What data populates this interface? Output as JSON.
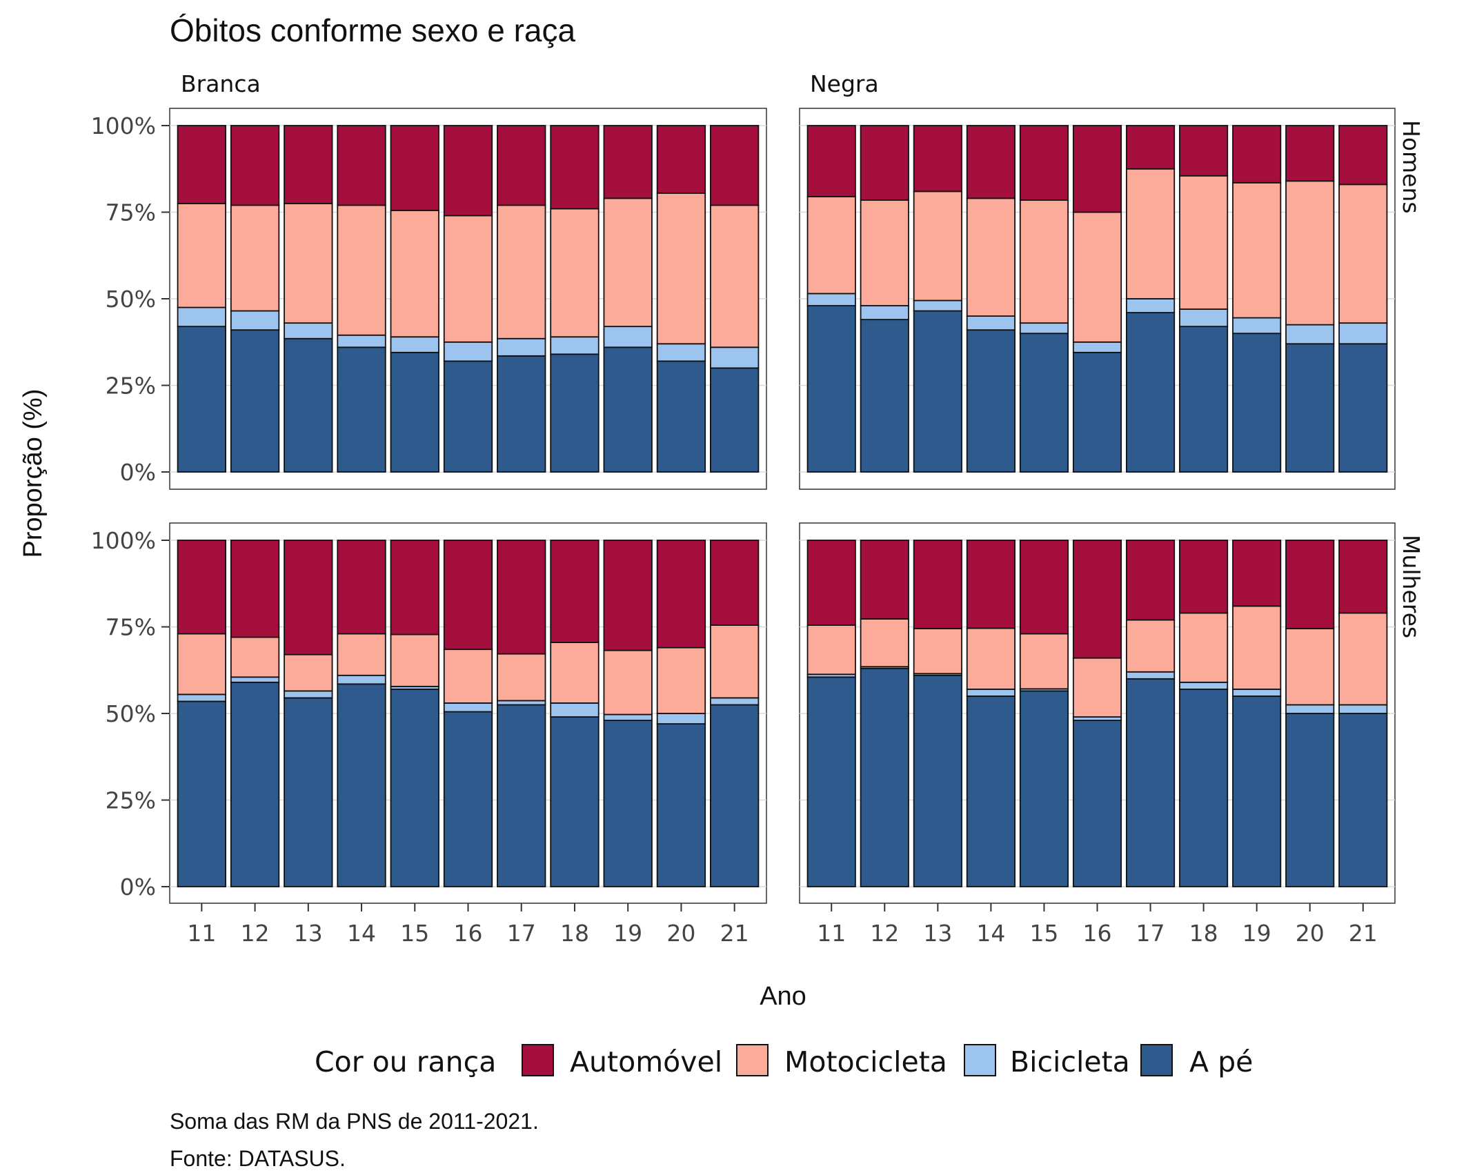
{
  "chart_data": {
    "type": "bar",
    "stacked": true,
    "percent": true,
    "title": "Óbitos conforme sexo e raça",
    "xlabel": "Ano",
    "ylabel": "Proporção (%)",
    "ylim": [
      0,
      100
    ],
    "yticks": [
      "0%",
      "25%",
      "50%",
      "75%",
      "100%"
    ],
    "categories": [
      "11",
      "12",
      "13",
      "14",
      "15",
      "16",
      "17",
      "18",
      "19",
      "20",
      "21"
    ],
    "legend": {
      "title": "Cor ou rança",
      "position": "bottom",
      "entries": [
        "Automóvel",
        "Motocicleta",
        "Bicicleta",
        "A pé"
      ]
    },
    "colors": {
      "Automóvel": "#a50f3d",
      "Motocicleta": "#fcab9a",
      "Bicicleta": "#9dc4ee",
      "A pé": "#2e5a8e"
    },
    "column_labels": [
      "Branca",
      "Negra"
    ],
    "row_labels": [
      "Homens",
      "Mulheres"
    ],
    "panels": [
      {
        "row": "Homens",
        "col": "Branca",
        "series": [
          {
            "name": "A pé",
            "values": [
              42,
              41,
              38.5,
              36,
              34.5,
              32,
              33.5,
              34,
              36,
              32,
              30
            ]
          },
          {
            "name": "Bicicleta",
            "values": [
              5.5,
              5.5,
              4.5,
              3.5,
              4.5,
              5.5,
              5,
              5,
              6,
              5,
              6
            ]
          },
          {
            "name": "Motocicleta",
            "values": [
              30,
              30.5,
              34.5,
              37.5,
              36.5,
              36.5,
              38.5,
              37,
              37,
              43.5,
              41
            ]
          },
          {
            "name": "Automóvel",
            "values": [
              22.5,
              23,
              22.5,
              23,
              24.5,
              26,
              23,
              24,
              21,
              19.5,
              23
            ]
          }
        ]
      },
      {
        "row": "Homens",
        "col": "Negra",
        "series": [
          {
            "name": "A pé",
            "values": [
              48,
              44,
              46.5,
              41,
              40,
              34.5,
              46,
              42,
              40,
              37,
              37
            ]
          },
          {
            "name": "Bicicleta",
            "values": [
              3.5,
              4,
              3,
              4,
              3,
              3,
              4,
              5,
              4.5,
              5.5,
              6
            ]
          },
          {
            "name": "Motocicleta",
            "values": [
              28,
              30.5,
              31.5,
              34,
              35.5,
              37.5,
              37.5,
              38.5,
              39,
              41.5,
              40
            ]
          },
          {
            "name": "Automóvel",
            "values": [
              20.5,
              21.5,
              19,
              21,
              21.5,
              25,
              12.5,
              14.5,
              16.5,
              16,
              17
            ]
          }
        ]
      },
      {
        "row": "Mulheres",
        "col": "Branca",
        "series": [
          {
            "name": "A pé",
            "values": [
              53.5,
              59,
              54.5,
              58.5,
              57,
              50.5,
              52.5,
              49,
              48,
              47,
              52.5
            ]
          },
          {
            "name": "Bicicleta",
            "values": [
              2,
              1.5,
              2,
              2.5,
              0.8,
              2.5,
              1.2,
              4,
              1.7,
              3,
              2
            ]
          },
          {
            "name": "Motocicleta",
            "values": [
              17.5,
              11.5,
              10.5,
              12,
              15,
              15.5,
              13.5,
              17.5,
              18.5,
              19,
              21
            ]
          },
          {
            "name": "Automóvel",
            "values": [
              27,
              28,
              33,
              27,
              27.2,
              31.5,
              32.8,
              29.5,
              31.8,
              31,
              24.5
            ]
          }
        ]
      },
      {
        "row": "Mulheres",
        "col": "Negra",
        "series": [
          {
            "name": "A pé",
            "values": [
              60.5,
              63,
              61,
              55,
              56.5,
              48,
              60,
              57,
              55,
              50,
              50
            ]
          },
          {
            "name": "Bicicleta",
            "values": [
              0.8,
              0.5,
              0.5,
              2,
              0.6,
              1,
              2,
              2,
              2,
              2.5,
              2.5
            ]
          },
          {
            "name": "Motocicleta",
            "values": [
              14.2,
              13.8,
              13,
              17.6,
              15.9,
              17,
              15,
              20,
              24,
              22,
              26.5
            ]
          },
          {
            "name": "Automóvel",
            "values": [
              24.5,
              22.7,
              25.5,
              25.4,
              27,
              34,
              23,
              21,
              19,
              25.5,
              21
            ]
          }
        ]
      }
    ]
  },
  "caption": {
    "line1": "Soma das RM da PNS de 2011-2021.",
    "line2": "Fonte: DATASUS."
  }
}
